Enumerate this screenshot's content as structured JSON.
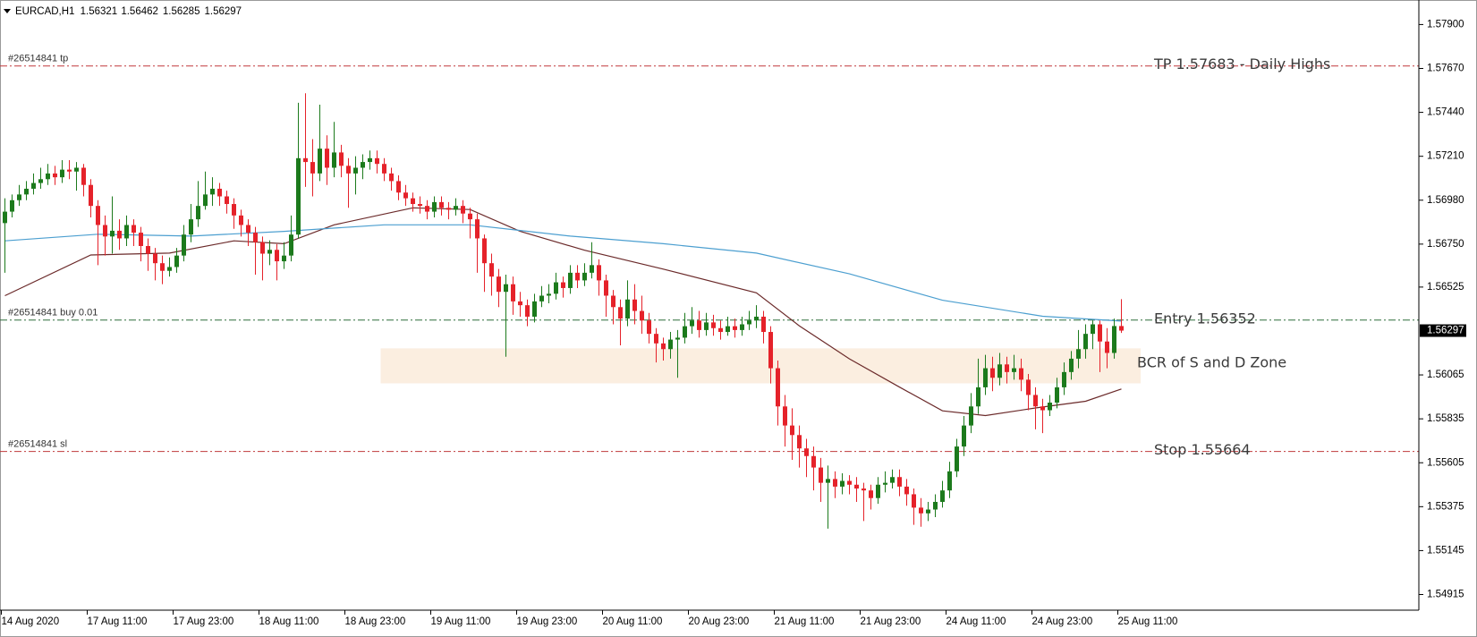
{
  "chart_data": {
    "type": "candlestick",
    "title": "EURCAD,H1",
    "categories": [
      "14 Aug 2020",
      null,
      null,
      null,
      null,
      null,
      null,
      null,
      null,
      null,
      null,
      null,
      "17 Aug 11:00",
      null,
      null,
      null,
      null,
      null,
      null,
      null,
      null,
      null,
      null,
      null,
      "17 Aug 23:00",
      null,
      null,
      null,
      null,
      null,
      null,
      null,
      null,
      null,
      null,
      null,
      "18 Aug 11:00",
      null,
      null,
      null,
      null,
      null,
      null,
      null,
      null,
      null,
      null,
      null,
      "18 Aug 23:00",
      null,
      null,
      null,
      null,
      null,
      null,
      null,
      null,
      null,
      null,
      null,
      "19 Aug 11:00",
      null,
      null,
      null,
      null,
      null,
      null,
      null,
      null,
      null,
      null,
      null,
      "19 Aug 23:00",
      null,
      null,
      null,
      null,
      null,
      null,
      null,
      null,
      null,
      null,
      null,
      "20 Aug 11:00",
      null,
      null,
      null,
      null,
      null,
      null,
      null,
      null,
      null,
      null,
      null,
      "20 Aug 23:00",
      null,
      null,
      null,
      null,
      null,
      null,
      null,
      null,
      null,
      null,
      null,
      "21 Aug 11:00",
      null,
      null,
      null,
      null,
      null,
      null,
      null,
      null,
      null,
      null,
      null,
      "21 Aug 23:00",
      null,
      null,
      null,
      null,
      null,
      null,
      null,
      null,
      null,
      null,
      null,
      "24 Aug 11:00",
      null,
      null,
      null,
      null,
      null,
      null,
      null,
      null,
      null,
      null,
      null,
      "24 Aug 23:00",
      null,
      null,
      null,
      null,
      null,
      null,
      null,
      null,
      null,
      null,
      null,
      "25 Aug 11:00"
    ],
    "open": [
      1.5686,
      1.5692,
      1.5698,
      1.5701,
      1.5704,
      1.5707,
      1.5709,
      1.5712,
      1.571,
      1.5714,
      1.5713,
      1.5715,
      1.5706,
      1.5695,
      1.5685,
      1.5679,
      1.5682,
      1.5678,
      1.5685,
      1.5681,
      1.5674,
      1.567,
      1.5665,
      1.5661,
      1.5663,
      1.5669,
      1.568,
      1.5688,
      1.5695,
      1.5701,
      1.5704,
      1.57,
      1.5696,
      1.569,
      1.5685,
      1.5681,
      1.5676,
      1.567,
      1.5672,
      1.5666,
      1.5669,
      1.568,
      1.572,
      1.5718,
      1.5712,
      1.5725,
      1.5715,
      1.5723,
      1.5716,
      1.5712,
      1.5715,
      1.5718,
      1.572,
      1.5717,
      1.5712,
      1.5708,
      1.5702,
      1.5699,
      1.5696,
      1.5695,
      1.5692,
      1.5697,
      1.5694,
      1.5693,
      1.5695,
      1.5691,
      1.5688,
      1.5678,
      1.5665,
      1.5658,
      1.565,
      1.5654,
      1.5645,
      1.5643,
      1.5637,
      1.5645,
      1.5648,
      1.5649,
      1.5655,
      1.5652,
      1.566,
      1.5656,
      1.566,
      1.5664,
      1.5656,
      1.5648,
      1.5642,
      1.5636,
      1.5646,
      1.564,
      1.5635,
      1.5628,
      1.5623,
      1.562,
      1.5625,
      1.5626,
      1.5632,
      1.5635,
      1.563,
      1.5634,
      1.5631,
      1.5629,
      1.5632,
      1.563,
      1.5633,
      1.5635,
      1.5637,
      1.5629,
      1.561,
      1.559,
      1.558,
      1.5575,
      1.5568,
      1.5564,
      1.5558,
      1.555,
      1.5552,
      1.5548,
      1.5551,
      1.5549,
      1.5547,
      1.5546,
      1.5542,
      1.5549,
      1.555,
      1.5553,
      1.5548,
      1.5544,
      1.5537,
      1.5534,
      1.5536,
      1.554,
      1.5546,
      1.5556,
      1.5569,
      1.558,
      1.559,
      1.56,
      1.561,
      1.5605,
      1.5612,
      1.5608,
      1.561,
      1.5604,
      1.5596,
      1.559,
      1.5588,
      1.5592,
      1.56,
      1.5608,
      1.5615,
      1.562,
      1.5628,
      1.5633,
      1.5624,
      1.5618,
      1.56321
    ],
    "high": [
      1.5699,
      1.5701,
      1.5706,
      1.5708,
      1.5712,
      1.5715,
      1.5717,
      1.5716,
      1.5719,
      1.5719,
      1.5718,
      1.5717,
      1.5709,
      1.5698,
      1.569,
      1.57,
      1.5688,
      1.569,
      1.5688,
      1.5684,
      1.5678,
      1.5673,
      1.5669,
      1.5668,
      1.5673,
      1.5685,
      1.5696,
      1.5708,
      1.5713,
      1.571,
      1.5707,
      1.5703,
      1.5699,
      1.5693,
      1.5688,
      1.5684,
      1.5679,
      1.5677,
      1.5675,
      1.5676,
      1.569,
      1.5749,
      1.5754,
      1.573,
      1.5748,
      1.5732,
      1.5739,
      1.5727,
      1.572,
      1.5721,
      1.5722,
      1.5724,
      1.5724,
      1.572,
      1.5715,
      1.5711,
      1.5706,
      1.5702,
      1.57,
      1.5698,
      1.57,
      1.57,
      1.5697,
      1.5699,
      1.5698,
      1.5694,
      1.5691,
      1.568,
      1.567,
      1.5662,
      1.5659,
      1.5658,
      1.565,
      1.5646,
      1.5649,
      1.5653,
      1.5654,
      1.566,
      1.5658,
      1.5664,
      1.5664,
      1.5665,
      1.5676,
      1.5667,
      1.5659,
      1.5651,
      1.5646,
      1.5656,
      1.5654,
      1.5648,
      1.5639,
      1.5631,
      1.5626,
      1.5629,
      1.563,
      1.5639,
      1.5642,
      1.564,
      1.5639,
      1.5638,
      1.5635,
      1.5637,
      1.5636,
      1.5637,
      1.564,
      1.5643,
      1.564,
      1.5632,
      1.5614,
      1.5596,
      1.5589,
      1.558,
      1.5573,
      1.5569,
      1.5563,
      1.5559,
      1.5556,
      1.5555,
      1.5554,
      1.5553,
      1.555,
      1.5549,
      1.5553,
      1.5556,
      1.5557,
      1.5557,
      1.5552,
      1.5547,
      1.5542,
      1.554,
      1.5544,
      1.5551,
      1.5561,
      1.5573,
      1.5585,
      1.5597,
      1.5615,
      1.5617,
      1.5616,
      1.5618,
      1.5616,
      1.5617,
      1.5615,
      1.5607,
      1.56,
      1.5594,
      1.5596,
      1.5605,
      1.5613,
      1.5619,
      1.563,
      1.5633,
      1.5635,
      1.5635,
      1.5631,
      1.5636,
      1.56462
    ],
    "low": [
      1.566,
      1.5689,
      1.5695,
      1.5698,
      1.5701,
      1.5704,
      1.5706,
      1.5706,
      1.5707,
      1.5709,
      1.5703,
      1.57,
      1.5689,
      1.5664,
      1.5669,
      1.567,
      1.5672,
      1.5674,
      1.5674,
      1.5666,
      1.5661,
      1.5656,
      1.5654,
      1.5658,
      1.566,
      1.5666,
      1.5676,
      1.5684,
      1.5693,
      1.5695,
      1.5695,
      1.5691,
      1.5683,
      1.5679,
      1.5674,
      1.5659,
      1.5656,
      1.5664,
      1.5656,
      1.5662,
      1.5666,
      1.5678,
      1.5705,
      1.57,
      1.5708,
      1.5706,
      1.571,
      1.571,
      1.5694,
      1.5701,
      1.5709,
      1.5714,
      1.5712,
      1.5708,
      1.5703,
      1.5698,
      1.5695,
      1.5692,
      1.5691,
      1.5688,
      1.5689,
      1.569,
      1.5688,
      1.569,
      1.5686,
      1.5678,
      1.566,
      1.565,
      1.5648,
      1.5642,
      1.5616,
      1.5638,
      1.5637,
      1.5632,
      1.5634,
      1.5642,
      1.5644,
      1.5646,
      1.5647,
      1.5649,
      1.5652,
      1.5653,
      1.5657,
      1.5648,
      1.5637,
      1.5633,
      1.5622,
      1.5632,
      1.5633,
      1.5628,
      1.5623,
      1.5613,
      1.5614,
      1.5615,
      1.5605,
      1.5623,
      1.5628,
      1.5626,
      1.5627,
      1.5627,
      1.5625,
      1.5627,
      1.5626,
      1.5627,
      1.563,
      1.5631,
      1.5623,
      1.5602,
      1.558,
      1.5569,
      1.5562,
      1.5558,
      1.5553,
      1.5546,
      1.554,
      1.5526,
      1.5542,
      1.5544,
      1.5544,
      1.554,
      1.553,
      1.5536,
      1.5539,
      1.5545,
      1.5547,
      1.5543,
      1.5538,
      1.5528,
      1.5527,
      1.553,
      1.5532,
      1.5537,
      1.5542,
      1.5553,
      1.5564,
      1.5576,
      1.5586,
      1.5596,
      1.5598,
      1.5601,
      1.5602,
      1.5604,
      1.5598,
      1.5588,
      1.5578,
      1.5576,
      1.5585,
      1.5589,
      1.5596,
      1.5604,
      1.561,
      1.5615,
      1.562,
      1.5608,
      1.561,
      1.5615,
      1.56285
    ],
    "close": [
      1.5692,
      1.5698,
      1.5701,
      1.5704,
      1.5707,
      1.5709,
      1.5712,
      1.571,
      1.5714,
      1.5713,
      1.5715,
      1.5706,
      1.5695,
      1.5685,
      1.5679,
      1.5682,
      1.5678,
      1.5685,
      1.5681,
      1.5674,
      1.567,
      1.5665,
      1.5661,
      1.5663,
      1.5669,
      1.568,
      1.5688,
      1.5695,
      1.5701,
      1.5704,
      1.57,
      1.5696,
      1.569,
      1.5685,
      1.5681,
      1.5676,
      1.567,
      1.5672,
      1.5666,
      1.5669,
      1.568,
      1.572,
      1.5718,
      1.5712,
      1.5725,
      1.5715,
      1.5723,
      1.5716,
      1.5712,
      1.5715,
      1.5718,
      1.572,
      1.5717,
      1.5712,
      1.5708,
      1.5702,
      1.5699,
      1.5696,
      1.5695,
      1.5692,
      1.5697,
      1.5694,
      1.5693,
      1.5695,
      1.5691,
      1.5688,
      1.5678,
      1.5665,
      1.5658,
      1.565,
      1.5654,
      1.5645,
      1.5643,
      1.5637,
      1.5645,
      1.5648,
      1.5649,
      1.5655,
      1.5652,
      1.566,
      1.5656,
      1.566,
      1.5664,
      1.5656,
      1.5648,
      1.5642,
      1.5636,
      1.5646,
      1.564,
      1.5635,
      1.5628,
      1.5623,
      1.562,
      1.5625,
      1.5626,
      1.5632,
      1.5635,
      1.563,
      1.5634,
      1.5631,
      1.5629,
      1.5632,
      1.563,
      1.5633,
      1.5635,
      1.5637,
      1.5629,
      1.561,
      1.559,
      1.558,
      1.5575,
      1.5568,
      1.5564,
      1.5558,
      1.555,
      1.5552,
      1.5548,
      1.5551,
      1.5549,
      1.5547,
      1.5546,
      1.5542,
      1.5549,
      1.555,
      1.5553,
      1.5548,
      1.5544,
      1.5537,
      1.5534,
      1.5536,
      1.554,
      1.5546,
      1.5556,
      1.5569,
      1.558,
      1.559,
      1.56,
      1.561,
      1.5605,
      1.5612,
      1.5608,
      1.561,
      1.5604,
      1.5596,
      1.559,
      1.5588,
      1.5592,
      1.56,
      1.5608,
      1.5615,
      1.562,
      1.5628,
      1.5633,
      1.5624,
      1.5618,
      1.56321,
      1.56297
    ],
    "colors": {
      "up": "#1c7a1c",
      "down": "#e5222a"
    },
    "ylim": [
      1.54833,
      1.58005
    ],
    "yticks": [
      {
        "value": 1.579,
        "label": "1.57900"
      },
      {
        "value": 1.5767,
        "label": "1.57670"
      },
      {
        "value": 1.5744,
        "label": "1.57440"
      },
      {
        "value": 1.5721,
        "label": "1.57210"
      },
      {
        "value": 1.5698,
        "label": "1.56980"
      },
      {
        "value": 1.5675,
        "label": "1.56750"
      },
      1.56525,
      1.56065,
      1.55835,
      1.55605,
      1.55375,
      1.55145,
      1.54915
    ],
    "moving_averages": [
      {
        "color": "#6b2a2a",
        "x": [
          0,
          12,
          23,
          32,
          39,
          46,
          57,
          65,
          72,
          81,
          92,
          105,
          111,
          118,
          125,
          131,
          137,
          144,
          151,
          156
        ],
        "values": [
          1.5648,
          1.56693,
          1.56703,
          1.56767,
          1.56752,
          1.56851,
          1.5694,
          1.56931,
          1.56817,
          1.56718,
          1.56619,
          1.56495,
          1.56322,
          1.56149,
          1.56001,
          1.55877,
          1.55852,
          1.55892,
          1.55927,
          1.55991
        ]
      },
      {
        "color": "#4c9fd0",
        "x": [
          0,
          13,
          26,
          39,
          53,
          65,
          79,
          92,
          105,
          118,
          131,
          145,
          156
        ],
        "values": [
          1.56767,
          1.56802,
          1.56792,
          1.56817,
          1.56851,
          1.56851,
          1.56792,
          1.56752,
          1.56703,
          1.56594,
          1.56456,
          1.56372,
          1.56347
        ]
      }
    ],
    "levels": [
      {
        "label": "#26514841 tp",
        "value": 1.57683,
        "annotation": "TP 1.57683 - Daily Highs",
        "color": "#c0393b"
      },
      {
        "label": "#26514841 buy 0.01",
        "value": 1.56352,
        "annotation": "Entry 1.56352",
        "color": "#2f6e3a"
      },
      {
        "label": "#26514841 sl",
        "value": 1.55664,
        "annotation": "Stop 1.55664",
        "color": "#c0393b"
      }
    ],
    "zone": {
      "label": "BCR of S and D Zone",
      "ylim": [
        1.56021,
        1.56204
      ],
      "xlim": [
        52.5,
        158.7
      ],
      "color": "#fbeee0"
    }
  }
}
